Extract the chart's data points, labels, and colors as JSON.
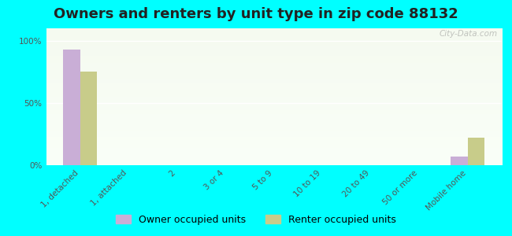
{
  "title": "Owners and renters by unit type in zip code 88132",
  "categories": [
    "1, detached",
    "1, attached",
    "2",
    "3 or 4",
    "5 to 9",
    "10 to 19",
    "20 to 49",
    "50 or more",
    "Mobile home"
  ],
  "owner_values": [
    93,
    0,
    0,
    0,
    0,
    0,
    0,
    0,
    7
  ],
  "renter_values": [
    75,
    0,
    0,
    0,
    0,
    0,
    0,
    0,
    22
  ],
  "owner_color": "#c9aed6",
  "renter_color": "#c8cc8a",
  "background_color": "#00ffff",
  "plot_bg_top": "#f5faf0",
  "plot_bg_bottom": "#fafff8",
  "yticks": [
    0,
    50,
    100
  ],
  "ylim": [
    0,
    110
  ],
  "bar_width": 0.35,
  "title_fontsize": 13,
  "tick_fontsize": 7.5,
  "legend_fontsize": 9,
  "watermark": "City-Data.com"
}
